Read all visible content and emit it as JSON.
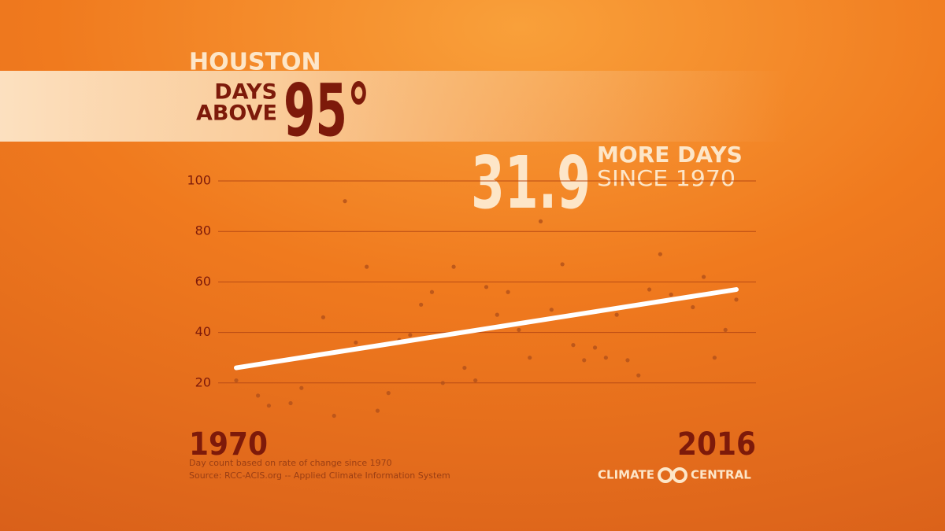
{
  "chart_data": {
    "type": "scatter",
    "city": "HOUSTON",
    "title_line1": "DAYS",
    "title_line2": "ABOVE",
    "threshold": "95°",
    "change": "31.9",
    "change_line1": "MORE DAYS",
    "change_line2": "SINCE 1970",
    "x": [
      1970,
      1972,
      1973,
      1975,
      1976,
      1978,
      1979,
      1980,
      1981,
      1982,
      1983,
      1984,
      1985,
      1986,
      1987,
      1988,
      1989,
      1990,
      1991,
      1992,
      1993,
      1994,
      1995,
      1996,
      1997,
      1998,
      1999,
      2000,
      2001,
      2002,
      2003,
      2004,
      2005,
      2006,
      2007,
      2008,
      2009,
      2010,
      2012,
      2013,
      2014,
      2015,
      2016
    ],
    "values": [
      21,
      15,
      11,
      12,
      18,
      46,
      7,
      92,
      36,
      66,
      9,
      16,
      37,
      39,
      51,
      56,
      20,
      66,
      26,
      21,
      58,
      47,
      56,
      41,
      30,
      84,
      49,
      67,
      35,
      29,
      34,
      30,
      47,
      29,
      23,
      57,
      71,
      55,
      50,
      62,
      30,
      41,
      53
    ],
    "color": "#b5521a",
    "trend": {
      "x": [
        1970,
        2016
      ],
      "values": [
        26,
        57
      ],
      "color": "#ffffff"
    },
    "xlim": [
      1970,
      2016
    ],
    "xticks": [
      1970,
      2016
    ],
    "ylim": [
      0,
      100
    ],
    "yticks": [
      20,
      40,
      60,
      80,
      100
    ],
    "grid": true,
    "notes": [
      "Day count based on rate of change since 1970",
      "Source: RCC-ACIS.org -- Applied Climate Information System"
    ],
    "brand": [
      "CLIMATE",
      "CENTRAL"
    ]
  }
}
